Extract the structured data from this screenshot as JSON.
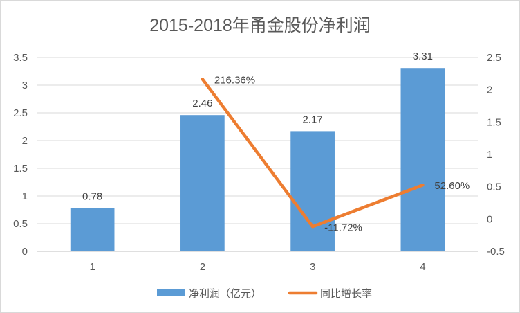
{
  "chart_data": {
    "type": "bar+line",
    "title": "2015-2018年甬金股份净利润",
    "categories": [
      "1",
      "2",
      "3",
      "4"
    ],
    "series": [
      {
        "name": "净利润（亿元）",
        "type": "bar",
        "axis": "left",
        "values": [
          0.78,
          2.46,
          2.17,
          3.31
        ],
        "labels": [
          "0.78",
          "2.46",
          "2.17",
          "3.31"
        ],
        "color": "#5b9bd5"
      },
      {
        "name": "同比增长率",
        "type": "line",
        "axis": "right",
        "values": [
          null,
          2.1636,
          -0.1172,
          0.526
        ],
        "labels": [
          "",
          "216.36%",
          "-11.72%",
          "52.60%"
        ],
        "color": "#ed7d31"
      }
    ],
    "y_left": {
      "ylim": [
        0,
        3.5
      ],
      "ticks": [
        "0",
        "0.5",
        "1",
        "1.5",
        "2",
        "2.5",
        "3",
        "3.5"
      ]
    },
    "y_right": {
      "ylim": [
        -0.5,
        2.5
      ],
      "ticks": [
        "-0.5",
        "0",
        "0.5",
        "1",
        "1.5",
        "2",
        "2.5"
      ]
    },
    "grid": true,
    "legend": "bottom"
  }
}
